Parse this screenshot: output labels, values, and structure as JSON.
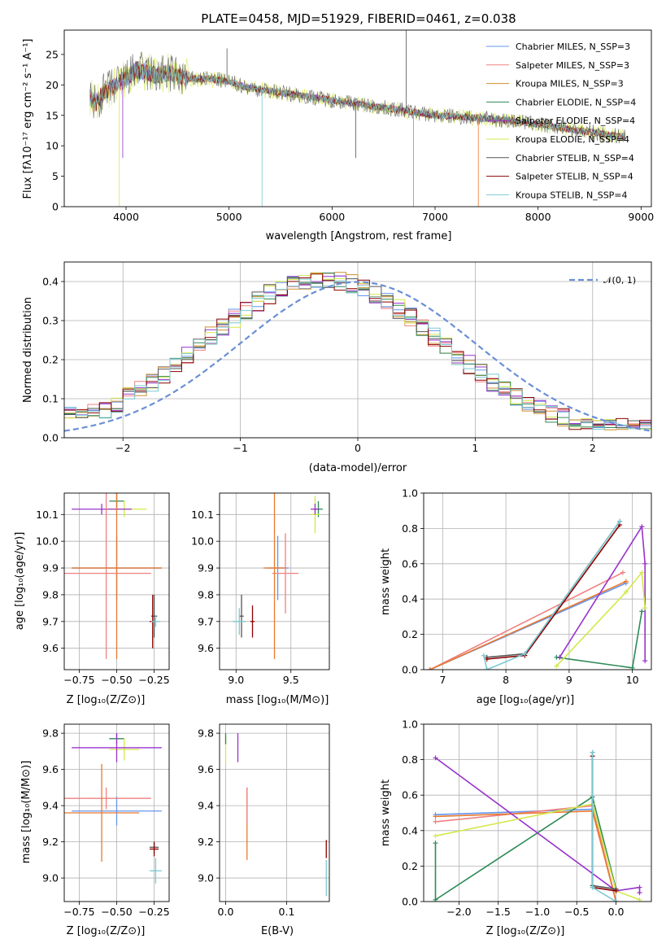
{
  "chart_data": [
    {
      "id": "spectrum",
      "type": "line",
      "title": "PLATE=0458, MJD=51929, FIBERID=0461, z=0.038",
      "xlabel": "wavelength [Angstrom, rest frame]",
      "ylabel": "Flux [fλ10⁻¹⁷ erg cm⁻² s⁻¹ A⁻¹]",
      "xlim": [
        3400,
        9100
      ],
      "ylim": [
        0,
        29
      ],
      "xticks": [
        4000,
        5000,
        6000,
        7000,
        8000,
        9000
      ],
      "yticks": [
        0,
        5,
        10,
        15,
        20,
        25
      ],
      "grid": false,
      "legend_position": "top-right",
      "continuum": {
        "x": [
          3650,
          3700,
          3800,
          3900,
          4000,
          4100,
          4200,
          4300,
          4400,
          4500,
          4600,
          4700,
          4800,
          4900,
          5000,
          5200,
          5400,
          5600,
          5800,
          6000,
          6200,
          6400,
          6600,
          6800,
          7000,
          7200,
          7400,
          7600,
          7800,
          8000,
          8200,
          8400,
          8600,
          8800
        ],
        "y": [
          18,
          17,
          19,
          20,
          21,
          22.5,
          22,
          21.5,
          22,
          21.5,
          21,
          21,
          21,
          20.8,
          20.5,
          19.5,
          19,
          18.5,
          18,
          17.5,
          17,
          16.5,
          16,
          15.5,
          15,
          14.8,
          14.6,
          14.3,
          14,
          13.5,
          13,
          12.5,
          12,
          11.5
        ]
      },
      "series": [
        {
          "name": "Chabrier MILES, N_SSP=3",
          "color": "#6495ed"
        },
        {
          "name": "Salpeter MILES, N_SSP=3",
          "color": "#f08080"
        },
        {
          "name": "Kroupa MILES, N_SSP=3",
          "color": "#cd8e2e"
        },
        {
          "name": "Chabrier ELODIE, N_SSP=4",
          "color": "#2e8b57"
        },
        {
          "name": "Salpeter ELODIE, N_SSP=4",
          "color": "#9932cc"
        },
        {
          "name": "Kroupa ELODIE, N_SSP=4",
          "color": "#d4e84a"
        },
        {
          "name": "Chabrier STELIB, N_SSP=4",
          "color": "#555555"
        },
        {
          "name": "Salpeter STELIB, N_SSP=4",
          "color": "#8b0000"
        },
        {
          "name": "Kroupa STELIB, N_SSP=4",
          "color": "#79c9d1"
        }
      ]
    },
    {
      "id": "residuals",
      "type": "bar",
      "xlabel": "(data-model)/error",
      "ylabel": "Normed distribution",
      "xlim": [
        -2.5,
        2.5
      ],
      "ylim": [
        0,
        0.45
      ],
      "xticks": [
        -2,
        -1,
        0,
        1,
        2
      ],
      "yticks": [
        0.0,
        0.1,
        0.2,
        0.3,
        0.4
      ],
      "grid": true,
      "legend_position": "top-right",
      "reference": {
        "name": "𝒩(0, 1)",
        "color": "#6a8fd6",
        "mean": 0,
        "sigma": 1
      },
      "bin_width": 0.1
    },
    {
      "id": "age-vs-Z",
      "type": "scatter",
      "xlabel": "Z [log₁₀(Z/Z⊙)]",
      "ylabel": "age [log₁₀(age/yr)]",
      "xlim": [
        -0.85,
        -0.15
      ],
      "ylim": [
        9.52,
        10.18
      ],
      "xticks": [
        -0.75,
        -0.5,
        -0.25
      ],
      "yticks": [
        9.6,
        9.7,
        9.8,
        9.9,
        10.0,
        10.1
      ],
      "grid": true,
      "points": [
        {
          "x": -0.5,
          "y": 10.15,
          "xerr": 0.05,
          "yerr": 0.03,
          "color": "#2e8b57"
        },
        {
          "x": -0.45,
          "y": 10.12,
          "xerr": 0.15,
          "yerr": 0.03,
          "color": "#d4e84a"
        },
        {
          "x": -0.6,
          "y": 10.12,
          "xerr": 0.2,
          "yerr": 0.02,
          "color": "#9932cc"
        },
        {
          "x": -0.5,
          "y": 9.9,
          "xerr": 0.3,
          "yerr": 0.12,
          "color": "#6495ed"
        },
        {
          "x": -0.57,
          "y": 9.88,
          "xerr": 0.3,
          "yerr": 0.32,
          "color": "#f08080"
        },
        {
          "x": -0.5,
          "y": 9.9,
          "xerr": 0.3,
          "yerr": 0.34,
          "color": "#e87a30"
        },
        {
          "x": -0.25,
          "y": 9.72,
          "xerr": 0.02,
          "yerr": 0.08,
          "color": "#555555"
        },
        {
          "x": -0.26,
          "y": 9.7,
          "xerr": 0.02,
          "yerr": 0.1,
          "color": "#8b0000"
        },
        {
          "x": -0.24,
          "y": 9.7,
          "xerr": 0.03,
          "yerr": 0.02,
          "color": "#79c9d1"
        }
      ]
    },
    {
      "id": "age-vs-mass",
      "type": "scatter",
      "xlabel": "mass [log₁₀(M/M⊙)]",
      "ylabel": "",
      "xlim": [
        8.85,
        9.85
      ],
      "ylim": [
        9.52,
        10.18
      ],
      "xticks": [
        9.0,
        9.5
      ],
      "yticks": [
        9.6,
        9.7,
        9.8,
        9.9,
        10.0,
        10.1
      ],
      "grid": true,
      "points": [
        {
          "x": 9.75,
          "y": 10.12,
          "xerr": 0.04,
          "yerr": 0.03,
          "color": "#2e8b57"
        },
        {
          "x": 9.72,
          "y": 10.1,
          "xerr": 0.04,
          "yerr": 0.07,
          "color": "#d4e84a"
        },
        {
          "x": 9.72,
          "y": 10.12,
          "xerr": 0.04,
          "yerr": 0.02,
          "color": "#9932cc"
        },
        {
          "x": 9.38,
          "y": 9.9,
          "xerr": 0.1,
          "yerr": 0.12,
          "color": "#6495ed"
        },
        {
          "x": 9.45,
          "y": 9.88,
          "xerr": 0.12,
          "yerr": 0.15,
          "color": "#f08080"
        },
        {
          "x": 9.35,
          "y": 9.9,
          "xerr": 0.1,
          "yerr": 0.34,
          "color": "#e87a30"
        },
        {
          "x": 9.05,
          "y": 9.72,
          "xerr": 0.02,
          "yerr": 0.08,
          "color": "#555555"
        },
        {
          "x": 9.15,
          "y": 9.7,
          "xerr": 0.02,
          "yerr": 0.06,
          "color": "#8b0000"
        },
        {
          "x": 9.03,
          "y": 9.7,
          "xerr": 0.06,
          "yerr": 0.05,
          "color": "#79c9d1"
        }
      ]
    },
    {
      "id": "weight-vs-age",
      "type": "line",
      "xlabel": "age [log₁₀(age/yr)]",
      "ylabel": "mass weight",
      "xlim": [
        6.7,
        10.3
      ],
      "ylim": [
        0,
        1.0
      ],
      "xticks": [
        7,
        8,
        9,
        10
      ],
      "yticks": [
        0.0,
        0.2,
        0.4,
        0.6,
        0.8,
        1.0
      ],
      "grid": true,
      "series": [
        {
          "color": "#6495ed",
          "x": [
            6.8,
            9.9
          ],
          "y": [
            0.0,
            0.49
          ]
        },
        {
          "color": "#f08080",
          "x": [
            6.8,
            9.85
          ],
          "y": [
            0.0,
            0.55
          ]
        },
        {
          "color": "#e87a30",
          "x": [
            6.8,
            9.9
          ],
          "y": [
            0.0,
            0.5
          ]
        },
        {
          "color": "#2e8b57",
          "x": [
            8.8,
            10.0,
            10.15
          ],
          "y": [
            0.07,
            0.01,
            0.33
          ]
        },
        {
          "color": "#9932cc",
          "x": [
            8.85,
            10.15,
            10.2,
            10.2
          ],
          "y": [
            0.07,
            0.81,
            0.6,
            0.05
          ]
        },
        {
          "color": "#d4e84a",
          "x": [
            8.8,
            9.9,
            10.15,
            10.2
          ],
          "y": [
            0.02,
            0.44,
            0.55,
            0.35
          ]
        },
        {
          "color": "#555555",
          "x": [
            7.7,
            8.3,
            9.8
          ],
          "y": [
            0.07,
            0.09,
            0.84
          ]
        },
        {
          "color": "#8b0000",
          "x": [
            7.7,
            8.3,
            9.8
          ],
          "y": [
            0.06,
            0.08,
            0.82
          ]
        },
        {
          "color": "#79c9d1",
          "x": [
            7.65,
            7.7,
            8.3,
            9.8
          ],
          "y": [
            0.08,
            0.0,
            0.09,
            0.84
          ]
        }
      ]
    },
    {
      "id": "mass-vs-Z",
      "type": "scatter",
      "xlabel": "Z [log₁₀(Z/Z⊙)]",
      "ylabel": "mass [log₁₀(M/M⊙)]",
      "xlim": [
        -0.85,
        -0.15
      ],
      "ylim": [
        8.87,
        9.85
      ],
      "xticks": [
        -0.75,
        -0.5,
        -0.25
      ],
      "yticks": [
        9.0,
        9.2,
        9.4,
        9.6,
        9.8
      ],
      "grid": true,
      "points": [
        {
          "x": -0.5,
          "y": 9.77,
          "xerr": 0.05,
          "yerr": 0.03,
          "color": "#2e8b57"
        },
        {
          "x": -0.45,
          "y": 9.71,
          "xerr": 0.1,
          "yerr": 0.06,
          "color": "#d4e84a"
        },
        {
          "x": -0.5,
          "y": 9.72,
          "xerr": 0.3,
          "yerr": 0.08,
          "color": "#9932cc"
        },
        {
          "x": -0.5,
          "y": 9.37,
          "xerr": 0.3,
          "yerr": 0.08,
          "color": "#6495ed"
        },
        {
          "x": -0.57,
          "y": 9.44,
          "xerr": 0.3,
          "yerr": 0.06,
          "color": "#f08080"
        },
        {
          "x": -0.6,
          "y": 9.36,
          "xerr": 0.25,
          "yerr": 0.27,
          "color": "#e87a30"
        },
        {
          "x": -0.25,
          "y": 9.17,
          "xerr": 0.03,
          "yerr": 0.03,
          "color": "#555555"
        },
        {
          "x": -0.25,
          "y": 9.16,
          "xerr": 0.03,
          "yerr": 0.04,
          "color": "#8b0000"
        },
        {
          "x": -0.24,
          "y": 9.04,
          "xerr": 0.04,
          "yerr": 0.07,
          "color": "#79c9d1"
        }
      ]
    },
    {
      "id": "mass-vs-ebv",
      "type": "scatter",
      "xlabel": "E(B-V)",
      "ylabel": "",
      "xlim": [
        -0.01,
        0.17
      ],
      "ylim": [
        8.87,
        9.85
      ],
      "xticks": [
        0.0,
        0.1
      ],
      "yticks": [
        9.0,
        9.2,
        9.4,
        9.6,
        9.8
      ],
      "grid": true,
      "points": [
        {
          "x": 0.0,
          "y": 9.71,
          "xerr": 0,
          "yerr": 0.08,
          "color": "#d4e84a"
        },
        {
          "x": 0.0,
          "y": 9.77,
          "xerr": 0,
          "yerr": 0.03,
          "color": "#2e8b57"
        },
        {
          "x": 0.02,
          "y": 9.72,
          "xerr": 0,
          "yerr": 0.08,
          "color": "#9932cc"
        },
        {
          "x": 0.035,
          "y": 9.3,
          "xerr": 0,
          "yerr": 0.2,
          "color": "#e87a30"
        },
        {
          "x": 0.035,
          "y": 9.4,
          "xerr": 0,
          "yerr": 0.1,
          "color": "#f08080"
        },
        {
          "x": 0.165,
          "y": 9.16,
          "xerr": 0,
          "yerr": 0.05,
          "color": "#8b0000"
        },
        {
          "x": 0.165,
          "y": 9.0,
          "xerr": 0,
          "yerr": 0.1,
          "color": "#79c9d1"
        }
      ]
    },
    {
      "id": "weight-vs-Z",
      "type": "line",
      "xlabel": "Z [log₁₀(Z/Z⊙)]",
      "ylabel": "mass weight",
      "xlim": [
        -2.45,
        0.45
      ],
      "ylim": [
        0,
        1.0
      ],
      "xticks": [
        -2.0,
        -1.5,
        -1.0,
        -0.5,
        0.0
      ],
      "yticks": [
        0.0,
        0.2,
        0.4,
        0.6,
        0.8,
        1.0
      ],
      "grid": true,
      "series": [
        {
          "color": "#6495ed",
          "x": [
            -2.3,
            -0.3,
            0.0
          ],
          "y": [
            0.49,
            0.52,
            0.0
          ]
        },
        {
          "color": "#f08080",
          "x": [
            -2.3,
            -0.3,
            0.0
          ],
          "y": [
            0.45,
            0.54,
            0.0
          ]
        },
        {
          "color": "#e87a30",
          "x": [
            -2.3,
            -0.3,
            0.0
          ],
          "y": [
            0.48,
            0.51,
            0.0
          ]
        },
        {
          "color": "#2e8b57",
          "x": [
            -2.3,
            -2.3,
            -0.3,
            0.0
          ],
          "y": [
            0.33,
            0.01,
            0.59,
            0.07
          ]
        },
        {
          "color": "#9932cc",
          "x": [
            -2.3,
            0.0,
            0.3,
            0.3
          ],
          "y": [
            0.81,
            0.06,
            0.08,
            0.05
          ]
        },
        {
          "color": "#d4e84a",
          "x": [
            -2.3,
            -0.3,
            0.0,
            0.3
          ],
          "y": [
            0.37,
            0.55,
            0.06,
            0.01
          ]
        },
        {
          "color": "#555555",
          "x": [
            -0.3,
            -0.3,
            0.0
          ],
          "y": [
            0.84,
            0.09,
            0.07
          ]
        },
        {
          "color": "#8b0000",
          "x": [
            -0.3,
            -0.3,
            0.0
          ],
          "y": [
            0.82,
            0.08,
            0.06
          ]
        },
        {
          "color": "#79c9d1",
          "x": [
            -0.3,
            -0.3,
            0.0
          ],
          "y": [
            0.84,
            0.08,
            0.0
          ]
        }
      ]
    }
  ]
}
